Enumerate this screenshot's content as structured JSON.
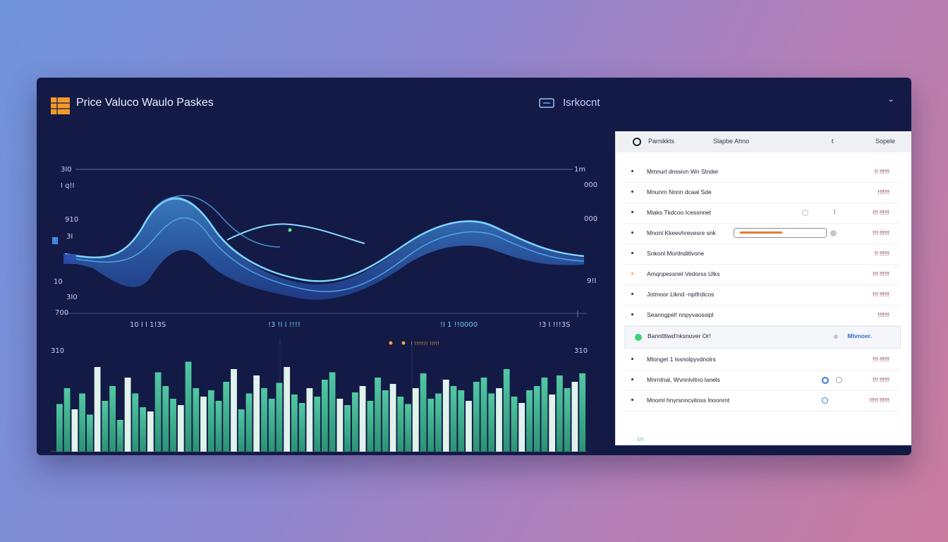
{
  "header": {
    "title": "Price Valuco Waulo Paskes",
    "center_label": "Isrkocnt"
  },
  "line_chart": {
    "y_left": [
      "3I0",
      "I q!I",
      "910",
      "3I",
      "10",
      "3I0",
      "700"
    ],
    "y_right": [
      "1m",
      "000",
      "000",
      "9!I"
    ],
    "x_labels": [
      "10 I I 1!3S",
      "!3 !I I !!!!",
      "!I 1 !!0000",
      "!3 I !!!3S"
    ]
  },
  "bar_chart": {
    "y_left": "310",
    "y_right": "310",
    "legend": "! !!!!!!! !!!!!",
    "values": [
      45,
      60,
      40,
      55,
      35,
      80,
      48,
      62,
      30,
      70,
      55,
      42,
      38,
      75,
      62,
      50,
      44,
      85,
      60,
      52,
      58,
      48,
      66,
      78,
      40,
      55,
      72,
      60,
      50,
      65,
      80,
      54,
      46,
      60,
      52,
      68,
      75,
      50,
      44,
      56,
      62,
      48,
      70,
      58,
      64,
      52,
      45,
      60,
      74,
      50,
      55,
      68,
      62,
      58,
      48,
      66,
      70,
      55,
      60,
      78,
      52,
      46,
      58,
      62,
      70,
      54,
      72,
      60,
      66,
      74
    ],
    "colors": {
      "bar": "#59d3a2",
      "bar_dark": "#3aa47f",
      "line": "#6fcaff",
      "accent": "#f6a33a"
    }
  },
  "panel": {
    "headers": [
      "Parnikkts",
      "Slapbe Ahno",
      "t",
      "Sopele"
    ],
    "rows": [
      {
        "label": "Mmnurl dnssivn Wn Slnder",
        "value": "!! !!!!!!"
      },
      {
        "label": "Mnunrn Nnnn dcaal  Sde",
        "value": "!!!!!!!"
      },
      {
        "label": "Miaks  Tkdcoo Icessnnet",
        "value": "!!! !!!!!!"
      },
      {
        "label": "Mnonl Kkeevhrevesre snk",
        "value": "!!! !!!!!!"
      },
      {
        "label": "Snkonl  Mortlnditlvone",
        "value": "!! !!!!!!"
      },
      {
        "label": "Amqnpessnel  Vedorss Ulks",
        "value": "!!! !!!!!!"
      },
      {
        "label": "Jotmoor  Llknd -nptfrdicos",
        "value": "!!! !!!!!!"
      },
      {
        "label": "Seanngpel! nnpyvaossipl",
        "value": "!!!!!!!"
      },
      {
        "label": "Banntltiwd'nksnuver Or!",
        "value": "Mlvnoer."
      },
      {
        "label": "Mlonget 1  lssnolpyvdnolrs",
        "value": "!!! !!!!!!"
      },
      {
        "label": "Mnrntnal, Wvnnlvitno lanels",
        "value": "!!! !!!!!!"
      },
      {
        "label": "Mnoml hnyrsnncvitoss lnoonrnt",
        "value": "!!!!! !!!!!!"
      }
    ],
    "footer": "1!!!"
  }
}
